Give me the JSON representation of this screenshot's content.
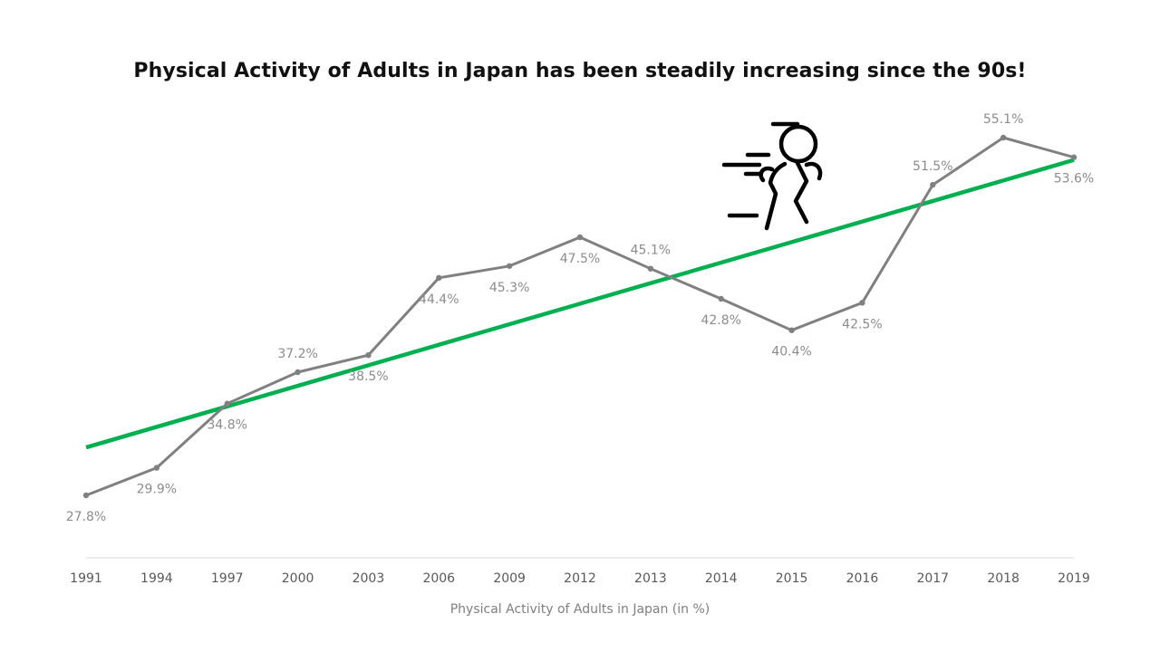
{
  "chart_data": {
    "type": "line",
    "title": "Physical Activity of Adults in Japan has been steadily increasing since the 90s!",
    "xlabel": "Physical Activity of Adults in Japan (in %)",
    "ylabel": "",
    "categories": [
      "1991",
      "1994",
      "1997",
      "2000",
      "2003",
      "2006",
      "2009",
      "2012",
      "2013",
      "2014",
      "2015",
      "2016",
      "2017",
      "2018",
      "2019"
    ],
    "series": [
      {
        "values": [
          27.8,
          29.9,
          34.8,
          37.2,
          38.5,
          44.4,
          45.3,
          47.5,
          45.1,
          42.8,
          40.4,
          42.5,
          51.5,
          55.1,
          53.6
        ],
        "labels": [
          "27.8%",
          "29.9%",
          "34.8%",
          "37.2%",
          "38.5%",
          "44.4%",
          "45.3%",
          "47.5%",
          "45.1%",
          "42.8%",
          "40.4%",
          "42.5%",
          "51.5%",
          "55.1%",
          "53.6%"
        ],
        "color": "#808080",
        "label_position": [
          "below",
          "below",
          "below",
          "above",
          "below",
          "below",
          "below",
          "below",
          "above",
          "below",
          "below",
          "below",
          "above",
          "above",
          "below"
        ]
      }
    ],
    "trendline": {
      "type": "linear",
      "color": "#00b050"
    },
    "y_axis_visible": false,
    "grid": false,
    "legend": "none"
  },
  "icon": {
    "name": "running-person-icon",
    "color": "#000000"
  }
}
